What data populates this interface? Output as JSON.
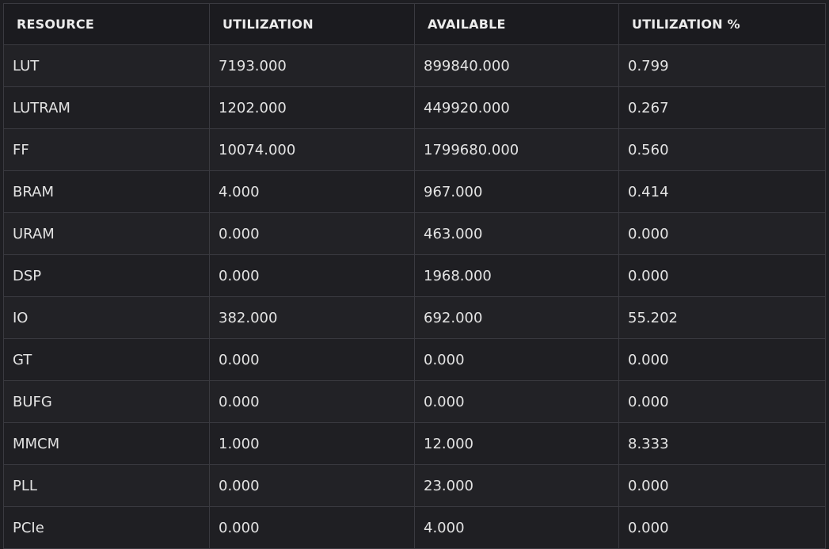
{
  "table": {
    "headers": [
      "RESOURCE",
      "UTILIZATION",
      "AVAILABLE",
      "UTILIZATION %"
    ],
    "rows": [
      [
        "LUT",
        "7193.000",
        "899840.000",
        "0.799"
      ],
      [
        "LUTRAM",
        "1202.000",
        "449920.000",
        "0.267"
      ],
      [
        "FF",
        "10074.000",
        "1799680.000",
        "0.560"
      ],
      [
        "BRAM",
        "4.000",
        "967.000",
        "0.414"
      ],
      [
        "URAM",
        "0.000",
        "463.000",
        "0.000"
      ],
      [
        "DSP",
        "0.000",
        "1968.000",
        "0.000"
      ],
      [
        "IO",
        "382.000",
        "692.000",
        "55.202"
      ],
      [
        "GT",
        "0.000",
        "0.000",
        "0.000"
      ],
      [
        "BUFG",
        "0.000",
        "0.000",
        "0.000"
      ],
      [
        "MMCM",
        "1.000",
        "12.000",
        "8.333"
      ],
      [
        "PLL",
        "0.000",
        "23.000",
        "0.000"
      ],
      [
        "PCIe",
        "0.000",
        "4.000",
        "0.000"
      ]
    ]
  }
}
